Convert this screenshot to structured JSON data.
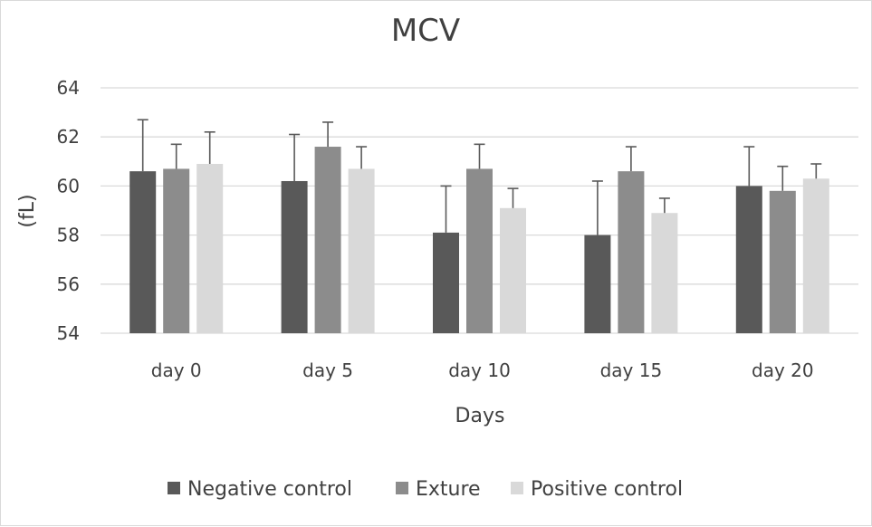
{
  "chart_data": {
    "type": "bar",
    "title": "MCV",
    "xlabel": "Days",
    "ylabel": "(fL)",
    "ylim": [
      54,
      64
    ],
    "yticks": [
      54,
      56,
      58,
      60,
      62,
      64
    ],
    "grid": true,
    "legend_position": "bottom",
    "categories": [
      "day 0",
      "day 5",
      "day 10",
      "day 15",
      "day 20"
    ],
    "series": [
      {
        "name": "Negative control",
        "color": "#595959",
        "values": [
          60.6,
          60.2,
          58.1,
          58.0,
          60.0
        ],
        "errors": [
          2.1,
          1.9,
          1.9,
          2.2,
          1.6
        ]
      },
      {
        "name": "Exture",
        "color": "#8c8c8c",
        "values": [
          60.7,
          61.6,
          60.7,
          60.6,
          59.8
        ],
        "errors": [
          1.0,
          1.0,
          1.0,
          1.0,
          1.0
        ]
      },
      {
        "name": "Positive control",
        "color": "#d9d9d9",
        "values": [
          60.9,
          60.7,
          59.1,
          58.9,
          60.3
        ],
        "errors": [
          1.3,
          0.9,
          0.8,
          0.6,
          0.6
        ]
      }
    ]
  }
}
